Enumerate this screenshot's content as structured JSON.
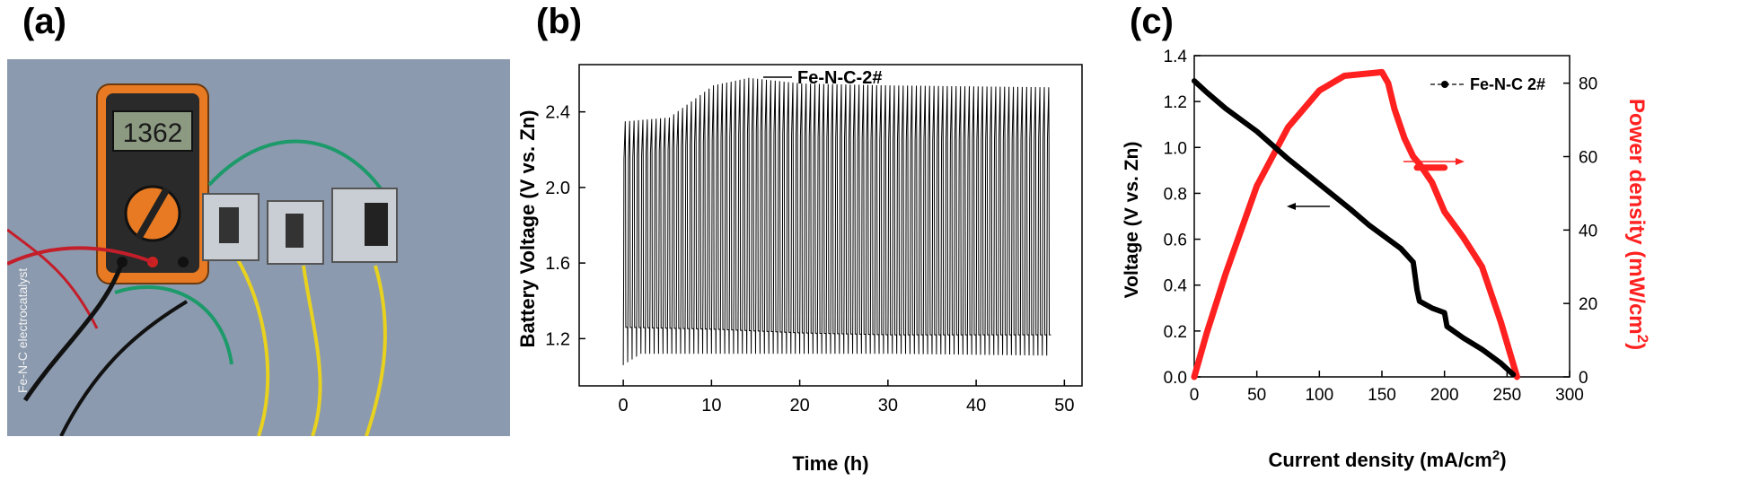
{
  "panels": {
    "a": "(a)",
    "b": "(b)",
    "c": "(c)"
  },
  "photo": {
    "side_text": "Fe-N-C electrocatalyst",
    "meter_reading": "1362"
  },
  "colors": {
    "black_series": "#000000",
    "red_series": "#ff2020",
    "photo_background": "#8a98ac"
  },
  "chart_data": [
    {
      "type": "line",
      "panel": "b",
      "xlabel": "Time (h)",
      "ylabel": "Battery Voltage (V vs. Zn)",
      "xlim": [
        -5,
        52
      ],
      "ylim": [
        0.95,
        2.65
      ],
      "x_ticks": [
        0,
        10,
        20,
        30,
        40,
        50
      ],
      "y_ticks": [
        1.2,
        1.6,
        2.0,
        2.4
      ],
      "legend": "top-right",
      "series": [
        {
          "name": "Fe-N-C-2#",
          "cycle_start_h": 0,
          "cycle_end_h": 48.5,
          "cycle_period_h": 0.5,
          "charge_voltage_points": [
            [
              0,
              2.35
            ],
            [
              5,
              2.37
            ],
            [
              10,
              2.54
            ],
            [
              14,
              2.58
            ],
            [
              20,
              2.55
            ],
            [
              30,
              2.54
            ],
            [
              48.5,
              2.53
            ]
          ],
          "charge_plateau_points": [
            [
              0,
              1.8
            ],
            [
              5,
              1.85
            ],
            [
              10,
              1.92
            ],
            [
              20,
              1.97
            ],
            [
              30,
              2.02
            ],
            [
              40,
              2.05
            ],
            [
              48.5,
              2.07
            ]
          ],
          "charge_upper_points": [
            [
              0,
              2.15
            ],
            [
              10,
              2.25
            ],
            [
              15,
              2.3
            ],
            [
              20,
              2.27
            ],
            [
              30,
              2.25
            ],
            [
              48.5,
              2.26
            ]
          ],
          "discharge_voltage_points": [
            [
              0,
              1.26
            ],
            [
              10,
              1.25
            ],
            [
              20,
              1.23
            ],
            [
              30,
              1.22
            ],
            [
              48.5,
              1.22
            ]
          ],
          "discharge_low_points": [
            [
              0,
              1.06
            ],
            [
              2,
              1.12
            ],
            [
              10,
              1.12
            ],
            [
              30,
              1.12
            ],
            [
              48.5,
              1.11
            ]
          ],
          "mid_band_points": [
            [
              0,
              1.45
            ],
            [
              10,
              1.5
            ],
            [
              20,
              1.55
            ],
            [
              30,
              1.58
            ],
            [
              40,
              1.62
            ],
            [
              48.5,
              1.72
            ]
          ],
          "mid_low_points": [
            [
              0,
              1.3
            ],
            [
              10,
              1.32
            ],
            [
              20,
              1.33
            ],
            [
              30,
              1.32
            ],
            [
              48.5,
              1.3
            ]
          ]
        }
      ]
    },
    {
      "type": "line",
      "panel": "c",
      "xlabel": "Current density (mA/cm",
      "xlabel_sup": "2",
      "xlabel_end": ")",
      "ylabel_left": "Voltage (V vs. Zn)",
      "ylabel_right": "Power density (mW/cm",
      "ylabel_right_sup": "2",
      "ylabel_right_end": ")",
      "xlim": [
        0,
        300
      ],
      "ylim_left": [
        0,
        1.4
      ],
      "ylim_right": [
        0,
        87.5
      ],
      "x_ticks": [
        0,
        50,
        100,
        150,
        200,
        250,
        300
      ],
      "y_ticks_left": [
        0.0,
        0.2,
        0.4,
        0.6,
        0.8,
        1.0,
        1.2,
        1.4
      ],
      "y_ticks_right": [
        0,
        20,
        40,
        60,
        80
      ],
      "legend": "top-right",
      "series": [
        {
          "name": "Fe-N-C 2#",
          "axis": "left",
          "points": [
            [
              0,
              1.29
            ],
            [
              10,
              1.24
            ],
            [
              25,
              1.17
            ],
            [
              50,
              1.07
            ],
            [
              75,
              0.95
            ],
            [
              100,
              0.84
            ],
            [
              125,
              0.73
            ],
            [
              140,
              0.66
            ],
            [
              150,
              0.62
            ],
            [
              165,
              0.56
            ],
            [
              175,
              0.5
            ],
            [
              178,
              0.38
            ],
            [
              180,
              0.33
            ],
            [
              190,
              0.3
            ],
            [
              200,
              0.28
            ],
            [
              202,
              0.22
            ],
            [
              215,
              0.17
            ],
            [
              230,
              0.12
            ],
            [
              245,
              0.06
            ],
            [
              255,
              0.01
            ]
          ]
        },
        {
          "axis": "right",
          "points": [
            [
              0,
              0
            ],
            [
              10,
              12
            ],
            [
              25,
              28
            ],
            [
              50,
              52
            ],
            [
              75,
              68
            ],
            [
              100,
              78
            ],
            [
              120,
              82
            ],
            [
              150,
              83
            ],
            [
              155,
              80
            ],
            [
              160,
              73
            ],
            [
              168,
              65
            ],
            [
              175,
              60
            ],
            [
              180,
              58
            ],
            [
              190,
              53
            ],
            [
              200,
              45
            ],
            [
              215,
              38
            ],
            [
              230,
              30
            ],
            [
              245,
              15
            ],
            [
              258,
              0
            ]
          ]
        }
      ]
    }
  ]
}
